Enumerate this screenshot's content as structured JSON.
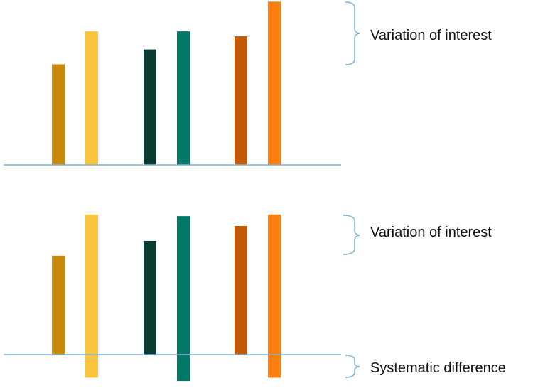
{
  "colors": {
    "baseline": "#7fb4d8",
    "bracket": "#7fb4d8",
    "gold_dark": "#c98a0c",
    "gold_light": "#fbc43f",
    "teal_dark": "#0b3b32",
    "teal_light": "#047866",
    "orange_dark": "#c35a05",
    "orange_light": "#fb7f10"
  },
  "panels": [
    {
      "bars": [
        {
          "pair": "gold",
          "shade": "dark",
          "color_key": "gold_dark",
          "value": 0.61
        },
        {
          "pair": "gold",
          "shade": "light",
          "color_key": "gold_light",
          "value": 0.81
        },
        {
          "pair": "teal",
          "shade": "dark",
          "color_key": "teal_dark",
          "value": 0.7
        },
        {
          "pair": "teal",
          "shade": "light",
          "color_key": "teal_light",
          "value": 0.81
        },
        {
          "pair": "orange",
          "shade": "dark",
          "color_key": "orange_dark",
          "value": 0.78
        },
        {
          "pair": "orange",
          "shade": "light",
          "color_key": "orange_light",
          "value": 0.99
        }
      ],
      "labels": {
        "variation": "Variation of interest"
      }
    },
    {
      "bars": [
        {
          "pair": "gold",
          "shade": "dark",
          "color_key": "gold_dark",
          "value": 0.6
        },
        {
          "pair": "gold",
          "shade": "light",
          "color_key": "gold_light",
          "value": 0.85,
          "below": 0.14
        },
        {
          "pair": "teal",
          "shade": "dark",
          "color_key": "teal_dark",
          "value": 0.69
        },
        {
          "pair": "teal",
          "shade": "light",
          "color_key": "teal_light",
          "value": 0.84,
          "below": 0.16
        },
        {
          "pair": "orange",
          "shade": "dark",
          "color_key": "orange_dark",
          "value": 0.78
        },
        {
          "pair": "orange",
          "shade": "light",
          "color_key": "orange_light",
          "value": 0.85,
          "below": 0.14
        }
      ],
      "labels": {
        "variation": "Variation of interest",
        "systematic": "Systematic difference"
      }
    }
  ]
}
